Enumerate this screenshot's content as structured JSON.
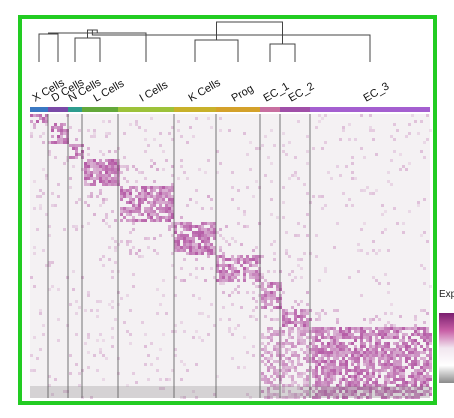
{
  "chart_data": {
    "type": "heatmap",
    "title": "",
    "legend": {
      "label": "Exp",
      "placement": "right",
      "colors": [
        "#7b1f6f",
        "#c85fa6",
        "#f1e6ef",
        "#ffffff",
        "#8a8a8a"
      ]
    },
    "clusters": [
      {
        "name": "X Cells",
        "color": "#3a78c2",
        "gene_share": 0.045
      },
      {
        "name": "D Cells",
        "color": "#7a4aa8",
        "gene_share": 0.05
      },
      {
        "name": "N Cells",
        "color": "#2e9c8e",
        "gene_share": 0.035
      },
      {
        "name": "L Cells",
        "color": "#63a83a",
        "gene_share": 0.09
      },
      {
        "name": "I Cells",
        "color": "#9dc23a",
        "gene_share": 0.14
      },
      {
        "name": "K Cells",
        "color": "#c8b12a",
        "gene_share": 0.105
      },
      {
        "name": "Prog",
        "color": "#d4a12a",
        "gene_share": 0.11
      },
      {
        "name": "EC_1",
        "color": "#c86fa0",
        "gene_share": 0.05
      },
      {
        "name": "EC_2",
        "color": "#a04fa8",
        "gene_share": 0.075
      },
      {
        "name": "EC_3",
        "color": "#a45fd0",
        "gene_share": 0.3
      }
    ],
    "dendrogram_merges": [
      [
        0,
        1
      ],
      [
        2,
        3
      ],
      [
        10,
        4
      ],
      [
        5,
        6
      ],
      [
        11,
        12
      ],
      [
        7,
        8
      ],
      [
        14,
        9
      ],
      [
        13,
        15
      ]
    ],
    "grid": false,
    "border_color": "#22cc22"
  }
}
